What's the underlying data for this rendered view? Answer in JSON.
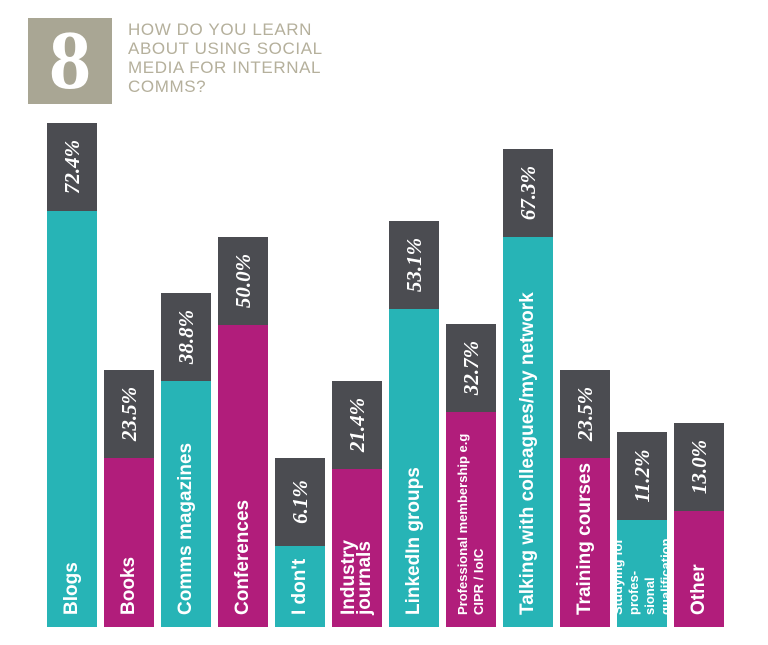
{
  "chart_data": {
    "type": "bar",
    "number": "8",
    "title": "HOW DO YOU LEARN\nABOUT USING SOCIAL\nMEDIA FOR INTERNAL\nCOMMS?",
    "categories": [
      "Blogs",
      "Books",
      "Comms magazines",
      "Conferences",
      "I don't",
      "Industry journals",
      "LinkedIn groups",
      "Professional membership e.g\nCIPR / IoIC",
      "Talking with colleagues/my network",
      "Training courses",
      "Studying for profes-\nsional qualification",
      "Other"
    ],
    "values": [
      72.4,
      23.5,
      38.8,
      50.0,
      6.1,
      21.4,
      53.1,
      32.7,
      67.3,
      23.5,
      11.2,
      13.0
    ],
    "value_labels": [
      "72.4%",
      "23.5%",
      "38.8%",
      "50.0%",
      "6.1%",
      "21.4%",
      "53.1%",
      "32.7%",
      "67.3%",
      "23.5%",
      "11.2%",
      "13.0%"
    ],
    "colors": [
      "#27b4b6",
      "#b11d7b",
      "#27b4b6",
      "#b11d7b",
      "#27b4b6",
      "#b11d7b",
      "#27b4b6",
      "#b11d7b",
      "#27b4b6",
      "#b11d7b",
      "#27b4b6",
      "#b11d7b"
    ],
    "cap_color": "#4b4c51"
  }
}
